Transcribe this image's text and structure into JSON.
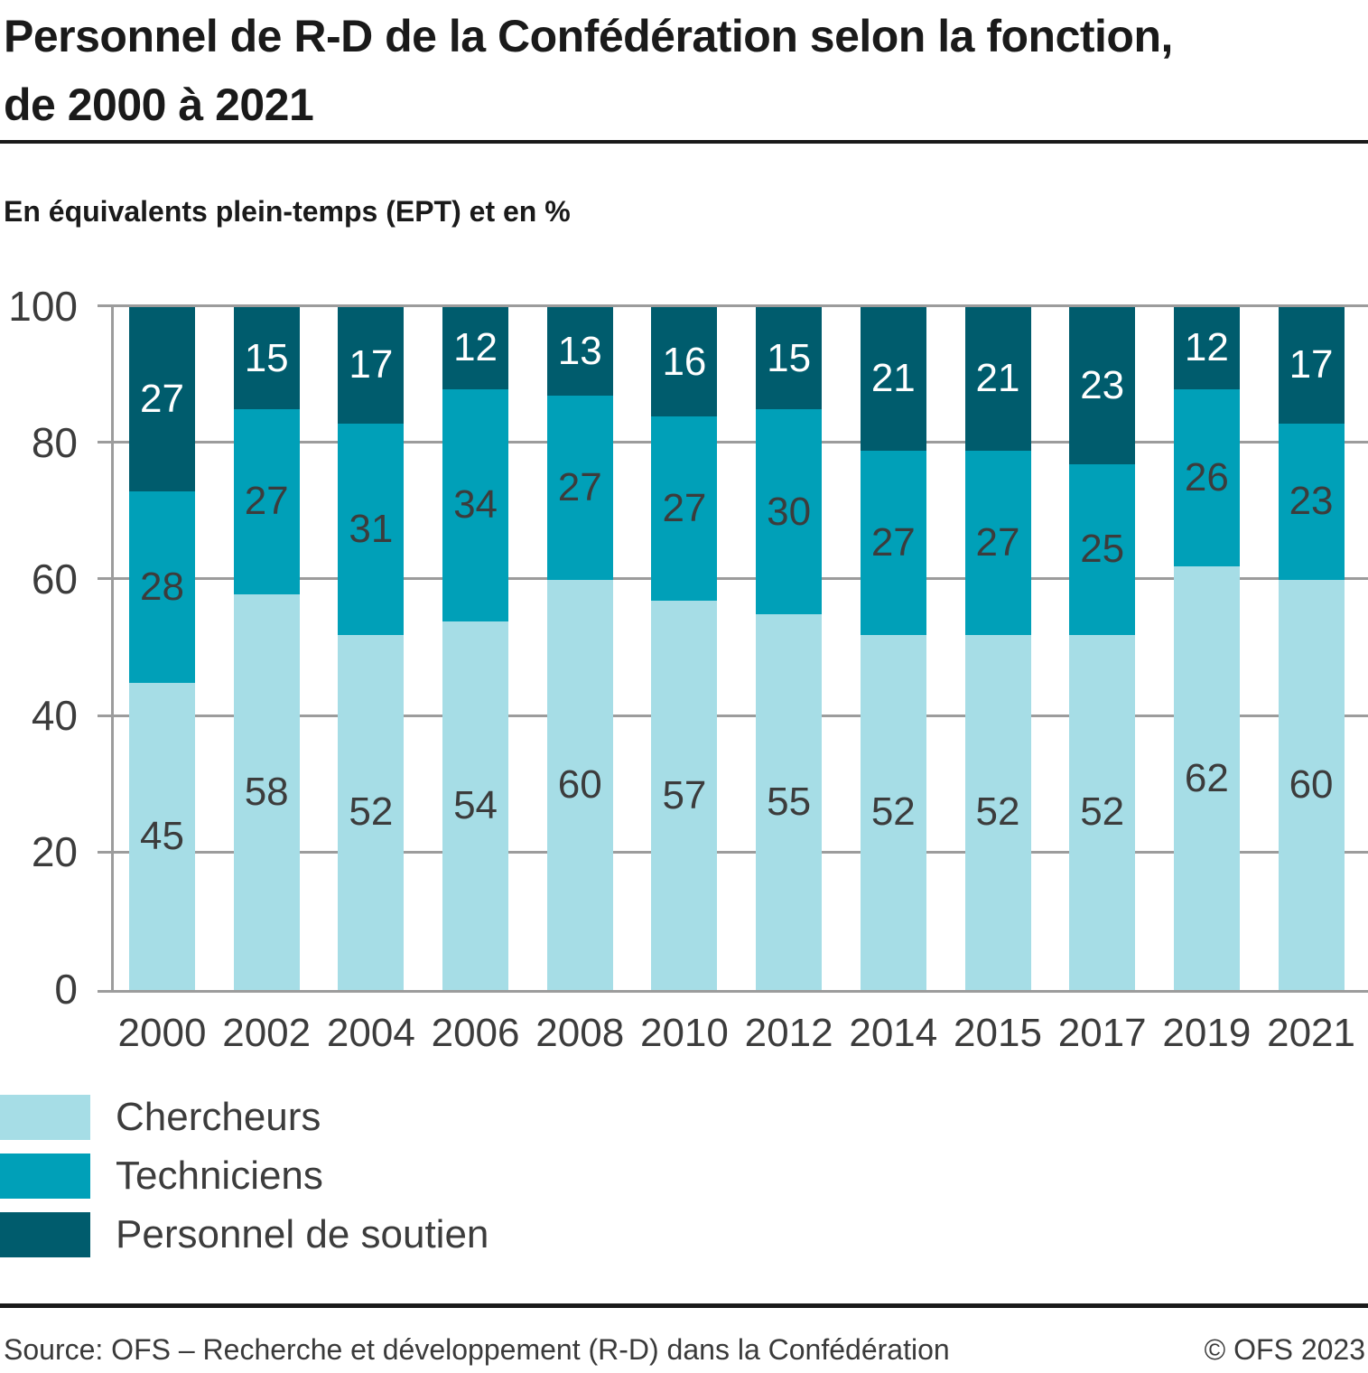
{
  "chart_data": {
    "type": "bar",
    "stacked": true,
    "title": "Personnel de R-D de la Confédération selon la fonction, de 2000 à 2021",
    "subtitle": "En équivalents plein-temps (EPT) et en %",
    "categories": [
      "2000",
      "2002",
      "2004",
      "2006",
      "2008",
      "2010",
      "2012",
      "2014",
      "2015",
      "2017",
      "2019",
      "2021"
    ],
    "series": [
      {
        "key": "chercheurs",
        "name": "Chercheurs",
        "color": "#a6dde6",
        "label_color": "#3c3c3c",
        "values": [
          45,
          58,
          52,
          54,
          60,
          57,
          55,
          52,
          52,
          52,
          62,
          60
        ]
      },
      {
        "key": "techniciens",
        "name": "Techniciens",
        "color": "#00a0b8",
        "label_color": "#3c3c3c",
        "values": [
          28,
          27,
          31,
          34,
          27,
          27,
          30,
          27,
          27,
          25,
          26,
          23
        ]
      },
      {
        "key": "soutien",
        "name": "Personnel de soutien",
        "color": "#005c6d",
        "label_color": "#ffffff",
        "values": [
          27,
          15,
          17,
          12,
          13,
          16,
          15,
          21,
          21,
          23,
          12,
          17
        ]
      }
    ],
    "yticks": [
      0,
      20,
      40,
      60,
      80,
      100
    ],
    "ylim": [
      0,
      100
    ],
    "grid": true,
    "grid_color": "#9c9c9c",
    "axis_label_color": "#3c3c3c",
    "legend_position": "bottom-left"
  },
  "footer": {
    "source": "Source: OFS – Recherche et développement (R-D) dans la Confédération",
    "copyright": "© OFS 2023"
  }
}
